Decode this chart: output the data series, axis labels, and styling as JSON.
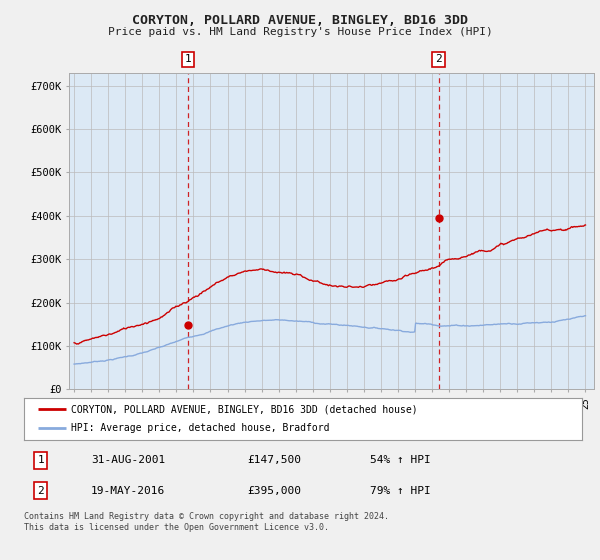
{
  "title": "CORYTON, POLLARD AVENUE, BINGLEY, BD16 3DD",
  "subtitle": "Price paid vs. HM Land Registry's House Price Index (HPI)",
  "xlim_start": 1994.7,
  "xlim_end": 2025.5,
  "ylim_min": 0,
  "ylim_max": 730000,
  "yticks": [
    0,
    100000,
    200000,
    300000,
    400000,
    500000,
    600000,
    700000
  ],
  "ytick_labels": [
    "£0",
    "£100K",
    "£200K",
    "£300K",
    "£400K",
    "£500K",
    "£600K",
    "£700K"
  ],
  "xtick_years": [
    1995,
    1996,
    1997,
    1998,
    1999,
    2000,
    2001,
    2002,
    2003,
    2004,
    2005,
    2006,
    2007,
    2008,
    2009,
    2010,
    2011,
    2012,
    2013,
    2014,
    2015,
    2016,
    2017,
    2018,
    2019,
    2020,
    2021,
    2022,
    2023,
    2024,
    2025
  ],
  "sale1_x": 2001.667,
  "sale1_y": 147500,
  "sale1_label": "1",
  "sale2_x": 2016.385,
  "sale2_y": 395000,
  "sale2_label": "2",
  "legend_entry1": "CORYTON, POLLARD AVENUE, BINGLEY, BD16 3DD (detached house)",
  "legend_entry2": "HPI: Average price, detached house, Bradford",
  "table_row1_num": "1",
  "table_row1_date": "31-AUG-2001",
  "table_row1_price": "£147,500",
  "table_row1_hpi": "54% ↑ HPI",
  "table_row2_num": "2",
  "table_row2_date": "19-MAY-2016",
  "table_row2_price": "£395,000",
  "table_row2_hpi": "79% ↑ HPI",
  "footnote": "Contains HM Land Registry data © Crown copyright and database right 2024.\nThis data is licensed under the Open Government Licence v3.0.",
  "property_line_color": "#cc0000",
  "hpi_line_color": "#88aadd",
  "sale_marker_color": "#cc0000",
  "plot_bg_color": "#dce9f5",
  "fig_bg_color": "#f0f0f0",
  "vline_color": "#cc0000",
  "grid_color": "#bbbbbb",
  "legend_border_color": "#999999"
}
